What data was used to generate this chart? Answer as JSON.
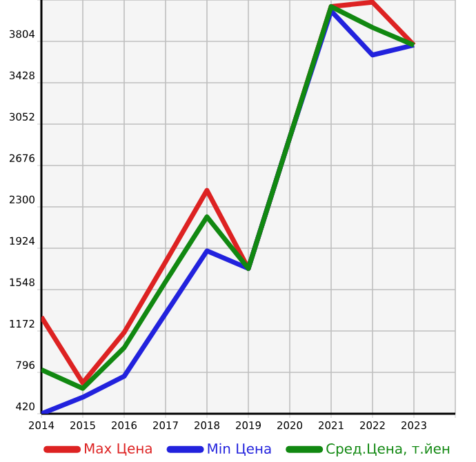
{
  "chart_data": {
    "type": "line",
    "x": [
      2014,
      2015,
      2016,
      2017,
      2018,
      2019,
      2020,
      2021,
      2022,
      2023
    ],
    "series": [
      {
        "name": "Max Цена",
        "color": "#dd2222",
        "values": [
          1300,
          700,
          1160,
          1800,
          2450,
          1740,
          2930,
          4120,
          4160,
          3770
        ]
      },
      {
        "name": "Min Цена",
        "color": "#2222dd",
        "values": [
          420,
          570,
          760,
          1330,
          1900,
          1740,
          2930,
          4080,
          3680,
          3770
        ]
      },
      {
        "name": "Сред.Цена, т.йен",
        "color": "#118811",
        "values": [
          820,
          650,
          1020,
          1620,
          2210,
          1740,
          2930,
          4120,
          3930,
          3770
        ]
      }
    ],
    "xlim": [
      2014,
      2024
    ],
    "xticks": [
      2014,
      2015,
      2016,
      2017,
      2018,
      2019,
      2020,
      2021,
      2022,
      2023,
      {
        "value": 2024,
        "label": null
      }
    ],
    "ylim": [
      420,
      4180
    ],
    "yticks": [
      420,
      796,
      1172,
      1548,
      1924,
      2300,
      2676,
      3052,
      3428,
      3804,
      {
        "value": 4180,
        "label": null
      }
    ],
    "grid": true,
    "legend": "bottom",
    "marker": "none",
    "line_style": "solid"
  }
}
